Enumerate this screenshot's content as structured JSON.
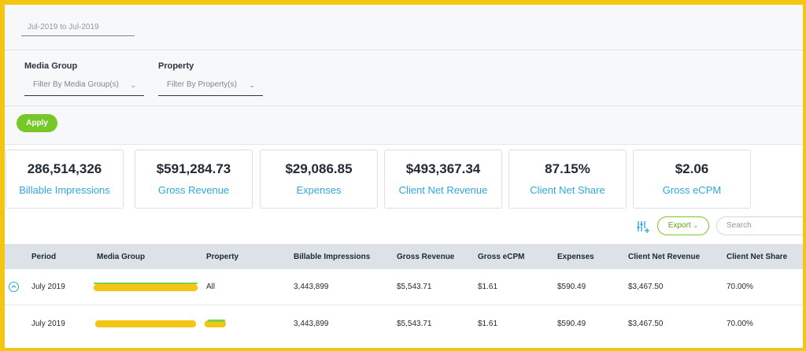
{
  "filters": {
    "date_range": "Jul-2019 to Jul-2019",
    "media_group_label": "Media Group",
    "media_group_placeholder": "Filter By Media Group(s)",
    "property_label": "Property",
    "property_placeholder": "Filter By Property(s)",
    "apply_label": "Apply"
  },
  "kpis": [
    {
      "value": "286,514,326",
      "label": "Billable Impressions"
    },
    {
      "value": "$591,284.73",
      "label": "Gross Revenue"
    },
    {
      "value": "$29,086.85",
      "label": "Expenses"
    },
    {
      "value": "$493,367.34",
      "label": "Client Net Revenue"
    },
    {
      "value": "87.15%",
      "label": "Client Net Share"
    },
    {
      "value": "$2.06",
      "label": "Gross eCPM"
    }
  ],
  "toolbar": {
    "columns_icon": "column-settings-icon",
    "export_label": "Export",
    "search_placeholder": "Search"
  },
  "table": {
    "headers": [
      "Period",
      "Media Group",
      "Property",
      "Billable Impressions",
      "Gross Revenue",
      "Gross eCPM",
      "Expenses",
      "Client Net Revenue",
      "Client Net Share"
    ],
    "rows": [
      {
        "period": "July 2019",
        "media_group": "",
        "property": "All",
        "billable_impressions": "3,443,899",
        "gross_revenue": "$5,543.71",
        "gross_ecpm": "$1.61",
        "expenses": "$590.49",
        "client_net_revenue": "$3,467.50",
        "client_net_share": "70.00%"
      },
      {
        "period": "July 2019",
        "media_group": "",
        "property": "",
        "billable_impressions": "3,443,899",
        "gross_revenue": "$5,543.71",
        "gross_ecpm": "$1.61",
        "expenses": "$590.49",
        "client_net_revenue": "$3,467.50",
        "client_net_share": "70.00%"
      }
    ]
  },
  "colors": {
    "accent_green": "#76c728",
    "accent_blue": "#2fa6dd",
    "highlight_yellow": "#f3c613"
  }
}
